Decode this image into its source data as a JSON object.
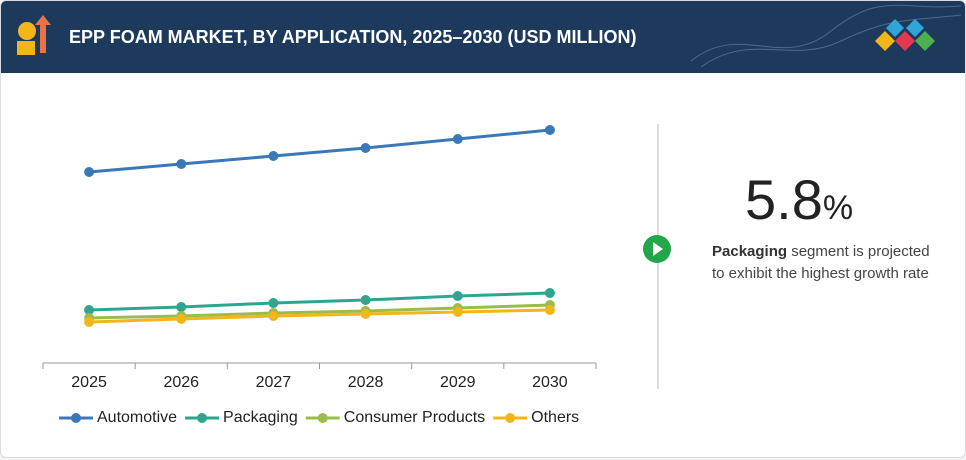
{
  "header": {
    "title": "EPP FOAM MARKET, BY APPLICATION, 2025–2030 (USD MILLION)"
  },
  "chart_data": {
    "type": "line",
    "categories": [
      "2025",
      "2026",
      "2027",
      "2028",
      "2029",
      "2030"
    ],
    "ylim": [
      0,
      250
    ],
    "legend": "bottom",
    "series": [
      {
        "name": "Automotive",
        "color": "#3b78b7",
        "values": [
          191,
          199,
          207,
          215,
          224,
          233
        ]
      },
      {
        "name": "Packaging",
        "color": "#2fa58f",
        "values": [
          53,
          56,
          60,
          63,
          67,
          70
        ]
      },
      {
        "name": "Consumer Products",
        "color": "#9bbb4a",
        "values": [
          45,
          47,
          50,
          52,
          55,
          58
        ]
      },
      {
        "name": "Others",
        "color": "#f2b619",
        "values": [
          41,
          44,
          47,
          49,
          51,
          53
        ]
      }
    ]
  },
  "callout": {
    "value": "5.8",
    "unit": "%",
    "highlight": "Packaging",
    "text": "segment is projected to exhibit the highest growth rate"
  }
}
